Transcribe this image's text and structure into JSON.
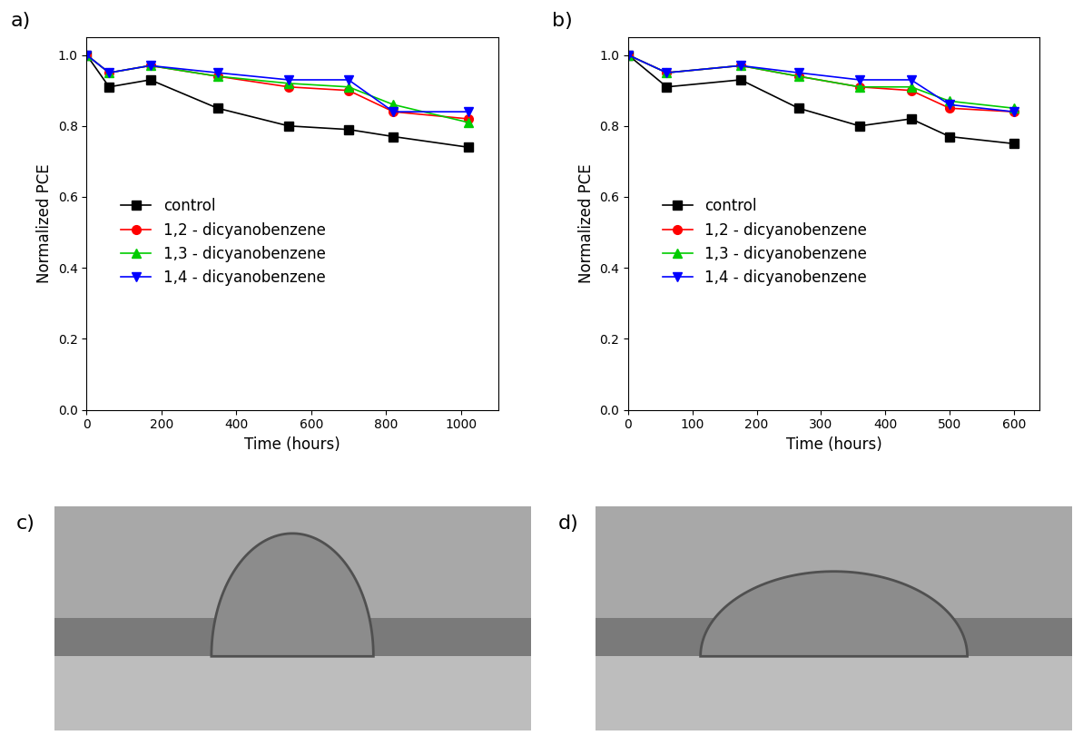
{
  "chart_data": [
    {
      "type": "line",
      "annotations": [
        "a)"
      ],
      "x_label": "Time (hours)",
      "y_label": "Normalized PCE",
      "x": [
        0,
        60,
        170,
        350,
        540,
        700,
        820,
        1020
      ],
      "series": [
        {
          "name": "control",
          "color": "#000000",
          "marker": "square",
          "values": [
            1.0,
            0.91,
            0.93,
            0.85,
            0.8,
            0.79,
            0.77,
            0.74
          ]
        },
        {
          "name": "1,2 - dicyanobenzene",
          "color": "#ff0000",
          "marker": "circle",
          "values": [
            1.0,
            0.95,
            0.97,
            0.94,
            0.91,
            0.9,
            0.84,
            0.82
          ]
        },
        {
          "name": "1,3 - dicyanobenzene",
          "color": "#00cc00",
          "marker": "triangle_up",
          "values": [
            1.0,
            0.95,
            0.97,
            0.94,
            0.92,
            0.91,
            0.86,
            0.81
          ]
        },
        {
          "name": "1,4 - dicyanobenzene",
          "color": "#0000ff",
          "marker": "triangle_down",
          "values": [
            1.0,
            0.95,
            0.97,
            0.95,
            0.93,
            0.93,
            0.84,
            0.84
          ]
        }
      ],
      "xlim": [
        0,
        1100
      ],
      "xticks": [
        0,
        200,
        400,
        600,
        800,
        1000
      ],
      "ylim": [
        0,
        1.05
      ],
      "yticks": [
        0.0,
        0.2,
        0.4,
        0.6,
        0.8,
        1.0
      ],
      "legend": "center left"
    },
    {
      "type": "line",
      "annotations": [
        "b)"
      ],
      "x_label": "Time (hours)",
      "y_label": "Normalized PCE",
      "x": [
        0,
        60,
        175,
        265,
        360,
        440,
        500,
        600
      ],
      "series": [
        {
          "name": "control",
          "color": "#000000",
          "marker": "square",
          "values": [
            1.0,
            0.91,
            0.93,
            0.85,
            0.8,
            0.82,
            0.77,
            0.75
          ]
        },
        {
          "name": "1,2 - dicyanobenzene",
          "color": "#ff0000",
          "marker": "circle",
          "values": [
            1.0,
            0.95,
            0.97,
            0.94,
            0.91,
            0.9,
            0.85,
            0.84
          ]
        },
        {
          "name": "1,3 - dicyanobenzene",
          "color": "#00cc00",
          "marker": "triangle_up",
          "values": [
            1.0,
            0.95,
            0.97,
            0.94,
            0.91,
            0.91,
            0.87,
            0.85
          ]
        },
        {
          "name": "1,4 - dicyanobenzene",
          "color": "#0000ff",
          "marker": "triangle_down",
          "values": [
            1.0,
            0.95,
            0.97,
            0.95,
            0.93,
            0.93,
            0.86,
            0.84
          ]
        }
      ],
      "xlim": [
        0,
        640
      ],
      "xticks": [
        0,
        100,
        200,
        300,
        400,
        500,
        600
      ],
      "ylim": [
        0,
        1.05
      ],
      "yticks": [
        0.0,
        0.2,
        0.4,
        0.6,
        0.8,
        1.0
      ],
      "legend": "center left"
    }
  ],
  "images": [
    {
      "label": "c)"
    },
    {
      "label": "d)"
    }
  ]
}
